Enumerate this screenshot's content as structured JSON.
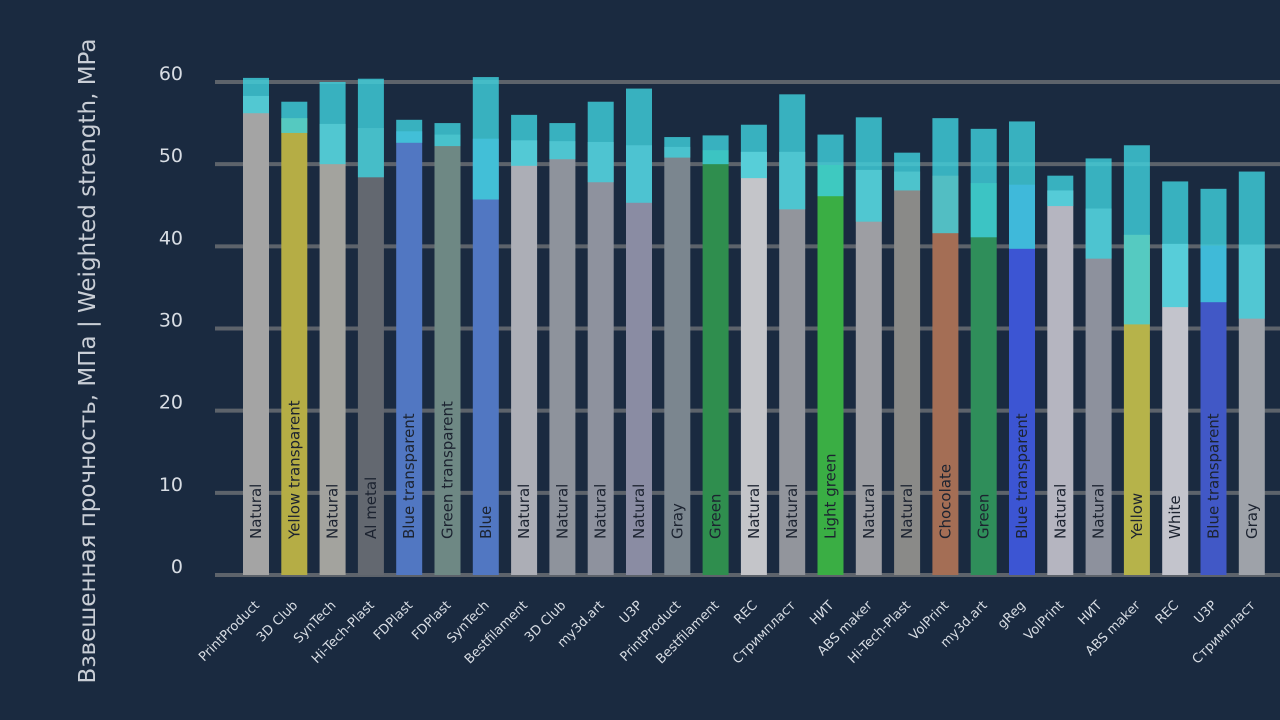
{
  "chart_data": {
    "type": "bar",
    "title": "",
    "xlabel": "",
    "ylabel": "Взвешенная прочность, МПа | Weighted strength, MPa",
    "ylim": [
      0,
      60
    ],
    "yticks": [
      0,
      10,
      20,
      30,
      40,
      50,
      60
    ],
    "grid": true,
    "colors": {
      "background": "#1a2a40",
      "grid": "#5d636b",
      "error_band": "#3fcfdc"
    },
    "bars": [
      {
        "category": "PrintProduct",
        "label": "Natural",
        "value": 58.3,
        "low": 56.2,
        "high": 60.5,
        "color": "#a4a4a4"
      },
      {
        "category": "3D Club",
        "label": "Yellow transparent",
        "value": 55.6,
        "low": 53.8,
        "high": 57.6,
        "color": "#b5ad45"
      },
      {
        "category": "SynTech",
        "label": "Natural",
        "value": 54.9,
        "low": 50.0,
        "high": 60.0,
        "color": "#a3a39e"
      },
      {
        "category": "Hi-Tech-Plast",
        "label": "Al metal",
        "value": 54.4,
        "low": 48.4,
        "high": 60.4,
        "color": "#636870"
      },
      {
        "category": "FDPlast",
        "label": "Blue transparent",
        "value": 54.0,
        "low": 52.6,
        "high": 55.4,
        "color": "#5177c2"
      },
      {
        "category": "FDPlast",
        "label": "Green transparent",
        "value": 53.6,
        "low": 52.2,
        "high": 55.0,
        "color": "#6e8884"
      },
      {
        "category": "SynTech",
        "label": "Blue",
        "value": 53.1,
        "low": 45.7,
        "high": 60.6,
        "color": "#5177c2"
      },
      {
        "category": "Bestfilament",
        "label": "Natural",
        "value": 52.9,
        "low": 49.8,
        "high": 56.0,
        "color": "#acaeb6"
      },
      {
        "category": "3D Club",
        "label": "Natural",
        "value": 52.8,
        "low": 50.6,
        "high": 55.0,
        "color": "#8e939c"
      },
      {
        "category": "my3d.art",
        "label": "Natural",
        "value": 52.7,
        "low": 47.8,
        "high": 57.6,
        "color": "#8e929e"
      },
      {
        "category": "U3P",
        "label": "Natural",
        "value": 52.3,
        "low": 45.3,
        "high": 59.2,
        "color": "#8a8ca3"
      },
      {
        "category": "PrintProduct",
        "label": "Gray",
        "value": 52.1,
        "low": 50.8,
        "high": 53.3,
        "color": "#7b868f"
      },
      {
        "category": "Bestfilament",
        "label": "Green",
        "value": 51.7,
        "low": 50.0,
        "high": 53.5,
        "color": "#2f8e4e"
      },
      {
        "category": "REC",
        "label": "Natural",
        "value": 51.5,
        "low": 48.3,
        "high": 54.8,
        "color": "#c4c5c9"
      },
      {
        "category": "Стримпласт",
        "label": "Natural",
        "value": 51.5,
        "low": 44.5,
        "high": 58.5,
        "color": "#92959c"
      },
      {
        "category": "НИТ",
        "label": "Light green",
        "value": 49.9,
        "low": 46.1,
        "high": 53.6,
        "color": "#3aae44"
      },
      {
        "category": "ABS maker",
        "label": "Natural",
        "value": 49.3,
        "low": 43.0,
        "high": 55.7,
        "color": "#9d9ea3"
      },
      {
        "category": "Hi-Tech-Plast",
        "label": "Natural",
        "value": 49.1,
        "low": 46.8,
        "high": 51.4,
        "color": "#8a8a88"
      },
      {
        "category": "VolPrint",
        "label": "Chocolate",
        "value": 48.6,
        "low": 41.6,
        "high": 55.6,
        "color": "#a46e55"
      },
      {
        "category": "my3d.art",
        "label": "Green",
        "value": 47.7,
        "low": 41.1,
        "high": 54.3,
        "color": "#2f8e5a"
      },
      {
        "category": "gReg",
        "label": "Blue transparent",
        "value": 47.5,
        "low": 39.7,
        "high": 55.2,
        "color": "#3c55d3"
      },
      {
        "category": "VolPrint",
        "label": "Natural",
        "value": 46.8,
        "low": 44.9,
        "high": 48.6,
        "color": "#b5b5c0"
      },
      {
        "category": "НИТ",
        "label": "Natural",
        "value": 44.6,
        "low": 38.5,
        "high": 50.7,
        "color": "#8d919d"
      },
      {
        "category": "ABS maker",
        "label": "Yellow",
        "value": 41.4,
        "low": 30.5,
        "high": 52.3,
        "color": "#b6b34a"
      },
      {
        "category": "REC",
        "label": "White",
        "value": 40.3,
        "low": 32.6,
        "high": 47.9,
        "color": "#c3c4cc"
      },
      {
        "category": "U3P",
        "label": "Blue transparent",
        "value": 40.1,
        "low": 33.2,
        "high": 47.0,
        "color": "#4158c6"
      },
      {
        "category": "Стримпласт",
        "label": "Gray",
        "value": 40.2,
        "low": 31.2,
        "high": 49.1,
        "color": "#9ea2a9"
      }
    ]
  }
}
